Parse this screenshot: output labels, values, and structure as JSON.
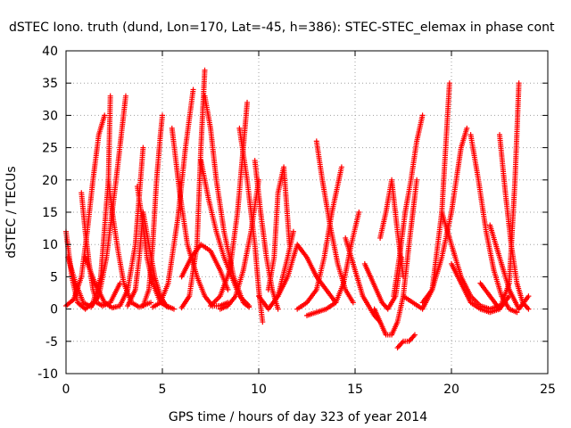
{
  "chart_data": {
    "type": "scatter",
    "title": "dSTEC Iono. truth (dund, Lon=170, Lat=-45, h=386): STEC-STEC_elemax in phase cont",
    "xlabel": "GPS time / hours of day 323 of year 2014",
    "ylabel": "dSTEC  / TECUs",
    "xlim": [
      0,
      25
    ],
    "ylim": [
      -10,
      40
    ],
    "xticks": [
      0,
      5,
      10,
      15,
      20,
      25
    ],
    "yticks": [
      -10,
      -5,
      0,
      5,
      10,
      15,
      20,
      25,
      30,
      35,
      40
    ],
    "grid": true,
    "marker": "+",
    "marker_color": "#ff0000",
    "series": [
      {
        "x": [
          0.0,
          0.3,
          0.6,
          1.0,
          1.4,
          1.8,
          2.2,
          2.3
        ],
        "y": [
          12,
          5,
          1,
          0,
          1,
          5,
          20,
          33
        ]
      },
      {
        "x": [
          0.0,
          0.4,
          0.8,
          1.1,
          1.4,
          1.7,
          2.0
        ],
        "y": [
          0.5,
          1.5,
          5,
          12,
          20,
          27,
          30
        ]
      },
      {
        "x": [
          0.1,
          0.5,
          0.9,
          1.3,
          1.7,
          2.1,
          2.6,
          3.1
        ],
        "y": [
          8,
          4,
          1,
          0.3,
          2,
          8,
          20,
          33
        ]
      },
      {
        "x": [
          0.8,
          1.0,
          1.2,
          1.4,
          1.6,
          1.9,
          2.3,
          2.8
        ],
        "y": [
          18,
          12,
          7,
          3,
          1,
          0.5,
          1,
          4
        ]
      },
      {
        "x": [
          1.0,
          1.5,
          2.0,
          2.4,
          2.8,
          3.2,
          3.6,
          4.0
        ],
        "y": [
          8,
          4,
          1,
          0.2,
          0.5,
          3,
          10,
          25
        ]
      },
      {
        "x": [
          2.2,
          2.4,
          2.7,
          3.0,
          3.4,
          3.8,
          4.4
        ],
        "y": [
          20,
          15,
          9,
          4,
          1,
          0.3,
          1
        ]
      },
      {
        "x": [
          3.2,
          3.6,
          3.8,
          4.0,
          4.3,
          4.6,
          4.9,
          5.2,
          5.6
        ],
        "y": [
          0.5,
          3,
          8,
          15,
          10,
          5,
          2,
          0.5,
          0
        ]
      },
      {
        "x": [
          3.7,
          4.0,
          4.2,
          4.5,
          4.9,
          5.3
        ],
        "y": [
          19,
          13,
          8,
          4,
          1,
          0.3
        ]
      },
      {
        "x": [
          4.0,
          4.3,
          4.5,
          4.7,
          4.9,
          5.0
        ],
        "y": [
          0.5,
          3,
          10,
          20,
          27,
          30
        ]
      },
      {
        "x": [
          4.5,
          4.9,
          5.3,
          5.8,
          6.2,
          6.6
        ],
        "y": [
          0.3,
          1,
          4,
          14,
          25,
          34
        ]
      },
      {
        "x": [
          5.5,
          5.9,
          6.3,
          6.8,
          7.2,
          7.6,
          8.0,
          8.4
        ],
        "y": [
          28,
          18,
          10,
          5,
          2,
          0.5,
          0.5,
          1
        ]
      },
      {
        "x": [
          6.0,
          6.4,
          6.8,
          7.0,
          7.2
        ],
        "y": [
          0.2,
          2,
          10,
          25,
          37
        ]
      },
      {
        "x": [
          6.0,
          6.5,
          7.0,
          7.5,
          8.0,
          8.4
        ],
        "y": [
          5,
          8,
          10,
          9,
          6,
          3
        ]
      },
      {
        "x": [
          7.2,
          7.5,
          7.8,
          8.2,
          8.7,
          9.2,
          9.5
        ],
        "y": [
          33,
          28,
          20,
          12,
          5,
          1,
          0.3
        ]
      },
      {
        "x": [
          7.5,
          8.0,
          8.5,
          8.9,
          9.2,
          9.4
        ],
        "y": [
          0.5,
          2,
          6,
          15,
          25,
          32
        ]
      },
      {
        "x": [
          7.0,
          7.4,
          7.8,
          8.2,
          8.6,
          9.0,
          9.5
        ],
        "y": [
          23,
          17,
          12,
          8,
          5,
          2,
          0.5
        ]
      },
      {
        "x": [
          8.0,
          8.4,
          8.8,
          9.2,
          9.6,
          10.0
        ],
        "y": [
          0,
          0.5,
          2,
          6,
          12,
          20
        ]
      },
      {
        "x": [
          9.0,
          9.4,
          9.8,
          10.0,
          10.2
        ],
        "y": [
          28,
          20,
          10,
          3,
          -2
        ]
      },
      {
        "x": [
          9.8,
          10.1,
          10.4,
          10.7,
          11.0
        ],
        "y": [
          23,
          15,
          8,
          3,
          0
        ]
      },
      {
        "x": [
          10.0,
          10.5,
          11.0,
          11.5,
          11.8
        ],
        "y": [
          2,
          0,
          2,
          8,
          12
        ]
      },
      {
        "x": [
          10.5,
          10.8,
          11.0,
          11.3,
          11.6
        ],
        "y": [
          3,
          8,
          18,
          22,
          10
        ]
      },
      {
        "x": [
          11.0,
          11.5,
          12.0,
          12.5,
          13.0,
          13.5,
          14.0
        ],
        "y": [
          2,
          5,
          10,
          8,
          5,
          3,
          1
        ]
      },
      {
        "x": [
          12.0,
          12.5,
          13.0,
          13.4,
          13.8,
          14.3
        ],
        "y": [
          0,
          1,
          3,
          8,
          15,
          22
        ]
      },
      {
        "x": [
          13.0,
          13.3,
          13.7,
          14.1,
          14.5,
          14.9
        ],
        "y": [
          26,
          20,
          13,
          7,
          3,
          1
        ]
      },
      {
        "x": [
          12.5,
          13.0,
          13.5,
          14.0,
          14.4,
          14.8,
          15.2
        ],
        "y": [
          -1,
          -0.5,
          0,
          1,
          4,
          10,
          15
        ]
      },
      {
        "x": [
          14.5,
          14.8,
          15.1,
          15.4,
          15.7,
          16.0,
          16.3
        ],
        "y": [
          11,
          8,
          5,
          2,
          0.5,
          -1,
          -2
        ]
      },
      {
        "x": [
          15.5,
          15.8,
          16.1,
          16.4,
          16.7,
          17.1,
          17.4
        ],
        "y": [
          7,
          5,
          3,
          1,
          0,
          2,
          8
        ]
      },
      {
        "x": [
          16.0,
          16.3,
          16.6,
          16.9,
          17.2,
          17.5,
          17.8,
          18.2
        ],
        "y": [
          0,
          -2,
          -4,
          -4,
          -2,
          2,
          10,
          20
        ]
      },
      {
        "x": [
          16.3,
          16.6,
          16.9,
          17.2,
          17.5
        ],
        "y": [
          11,
          15,
          20,
          12,
          5
        ]
      },
      {
        "x": [
          17.0,
          17.3,
          17.6,
          17.9,
          18.2,
          18.5
        ],
        "y": [
          2,
          8,
          15,
          20,
          26,
          30
        ]
      },
      {
        "x": [
          17.2,
          17.5,
          17.8,
          18.1
        ],
        "y": [
          -6,
          -5,
          -5,
          -4
        ]
      },
      {
        "x": [
          17.5,
          18.0,
          18.5,
          19.0,
          19.5,
          19.9
        ],
        "y": [
          2,
          1,
          0,
          3,
          15,
          35
        ]
      },
      {
        "x": [
          18.5,
          19.0,
          19.5,
          20.0,
          20.5,
          20.8
        ],
        "y": [
          1,
          3,
          8,
          15,
          25,
          28
        ]
      },
      {
        "x": [
          19.5,
          20.0,
          20.5,
          21.0,
          21.5,
          22.0,
          22.5
        ],
        "y": [
          15,
          10,
          5,
          2,
          0.5,
          0,
          0.5
        ]
      },
      {
        "x": [
          20.0,
          20.5,
          21.0,
          21.5,
          22.0,
          22.5,
          23.0
        ],
        "y": [
          7,
          4,
          1,
          0,
          -0.5,
          0,
          2
        ]
      },
      {
        "x": [
          21.0,
          21.4,
          21.8,
          22.2,
          22.6,
          23.0,
          23.4
        ],
        "y": [
          27,
          20,
          12,
          6,
          2,
          0,
          -0.5
        ]
      },
      {
        "x": [
          21.5,
          22.0,
          22.5,
          23.0,
          23.3,
          23.5
        ],
        "y": [
          4,
          2,
          0,
          4,
          20,
          35
        ]
      },
      {
        "x": [
          22.5,
          22.8,
          23.1,
          23.4,
          23.7,
          24.0
        ],
        "y": [
          27,
          18,
          10,
          4,
          1,
          0
        ]
      },
      {
        "x": [
          22.0,
          22.5,
          23.0,
          23.5,
          24.0
        ],
        "y": [
          13,
          8,
          3,
          0,
          2
        ]
      }
    ]
  }
}
